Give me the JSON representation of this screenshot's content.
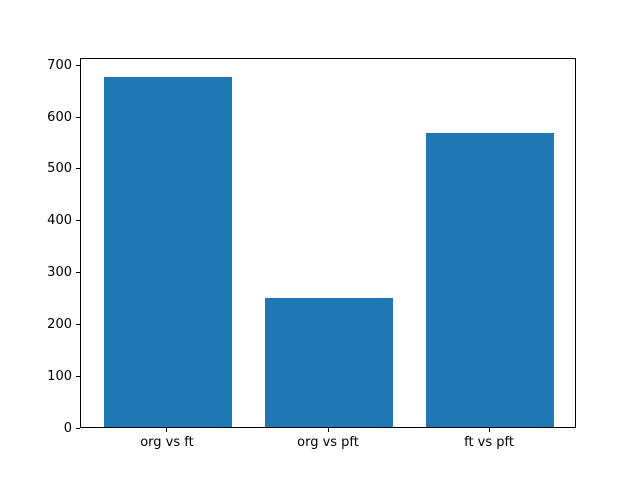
{
  "chart_data": {
    "type": "bar",
    "categories": [
      "org vs ft",
      "org vs pft",
      "ft vs pft"
    ],
    "values": [
      680,
      250,
      570
    ],
    "title": "",
    "xlabel": "",
    "ylabel": "",
    "ylim": [
      0,
      714
    ],
    "yticks": [
      0,
      100,
      200,
      300,
      400,
      500,
      600,
      700
    ],
    "bar_color": "#1f77b4",
    "bar_width_fraction": 0.8,
    "grid": false,
    "legend": false,
    "background_color": "#ffffff",
    "axis_color": "#000000"
  }
}
